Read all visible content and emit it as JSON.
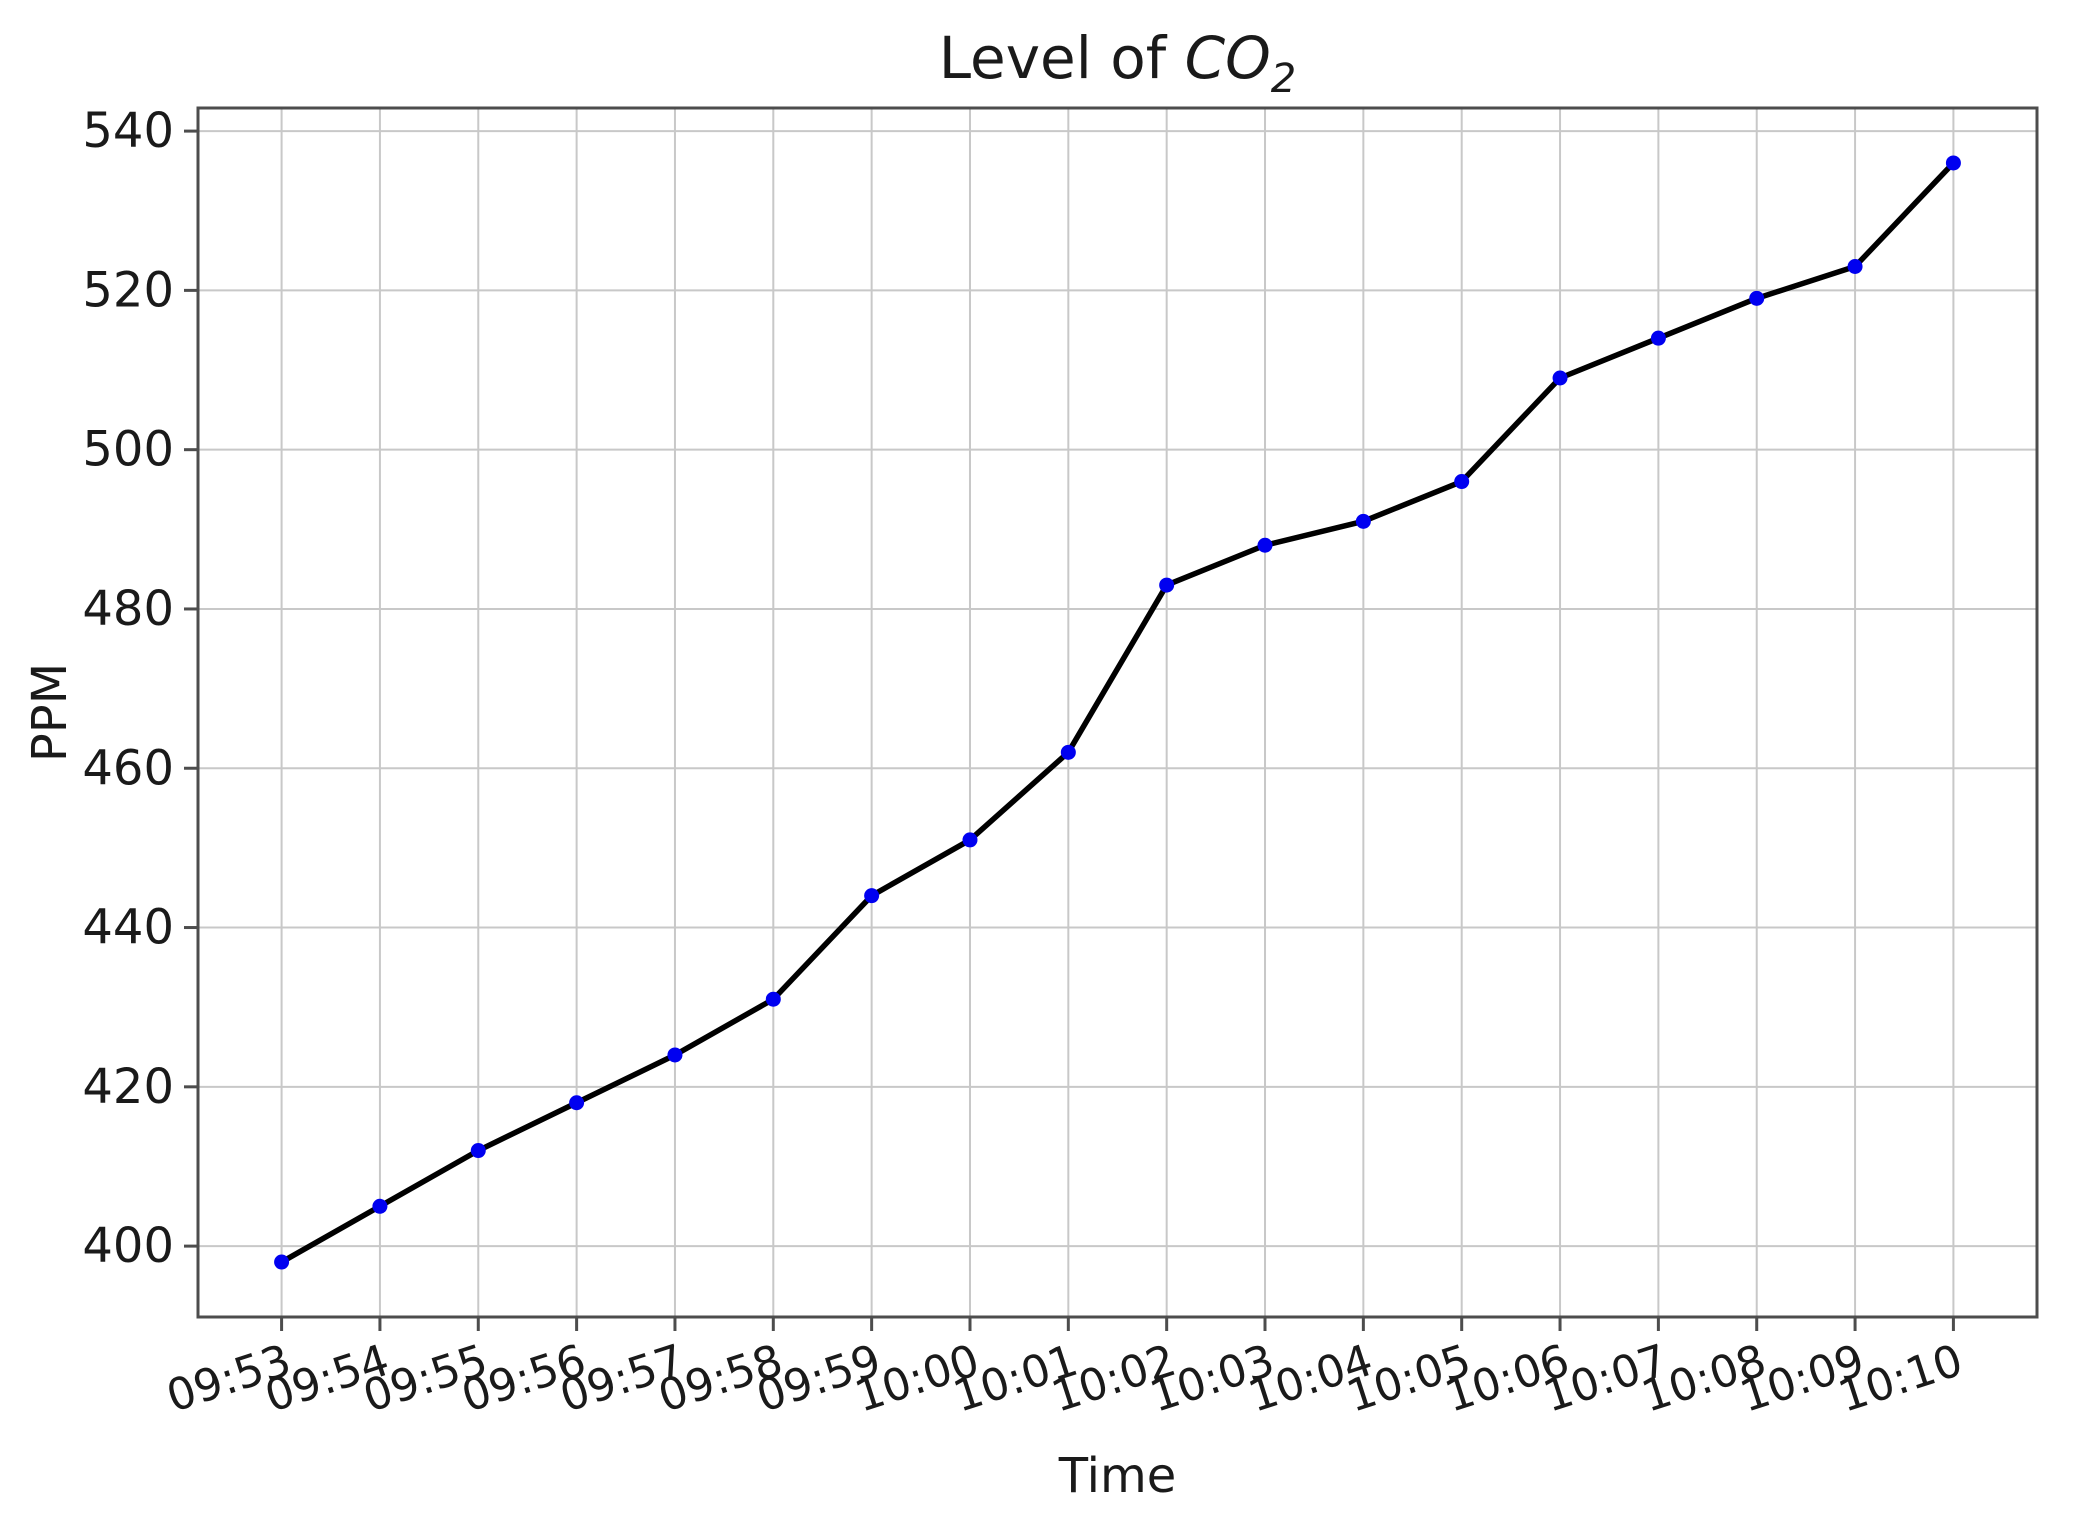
{
  "chart_data": {
    "type": "line",
    "title": {
      "prefix": "Level of ",
      "math": "CO",
      "sub": "2",
      "full": "Level of CO2"
    },
    "xlabel": "Time",
    "ylabel": "PPM",
    "categories": [
      "09:53",
      "09:54",
      "09:55",
      "09:56",
      "09:57",
      "09:58",
      "09:59",
      "10:00",
      "10:01",
      "10:02",
      "10:03",
      "10:04",
      "10:05",
      "10:06",
      "10:07",
      "10:08",
      "10:09",
      "10:10"
    ],
    "values": [
      398,
      405,
      412,
      418,
      424,
      431,
      444,
      451,
      462,
      483,
      488,
      491,
      496,
      509,
      514,
      519,
      523,
      536
    ],
    "y_ticks": [
      400,
      420,
      440,
      460,
      480,
      500,
      520,
      540
    ],
    "ylim": [
      391.1,
      542.9
    ],
    "xlim_index": [
      -0.85,
      17.85
    ],
    "grid": true,
    "legend": "none",
    "x_tick_rotation_deg": 18,
    "colors": {
      "line": "#000000",
      "marker": "#0000f0",
      "grid": "#c8c8c8",
      "spine": "#4d4d4d",
      "text": "#1a1a1a"
    }
  }
}
